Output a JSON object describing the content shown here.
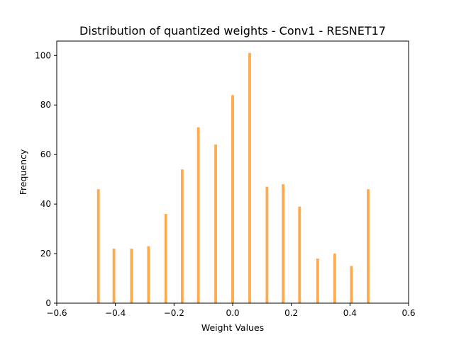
{
  "chart_data": {
    "type": "bar",
    "title": "Distribution of quantized weights - Conv1 - RESNET17",
    "xlabel": "Weight Values",
    "ylabel": "Frequency",
    "xlim": [
      -0.6,
      0.6
    ],
    "ylim": [
      0,
      105.8
    ],
    "xticks": [
      -0.6,
      -0.4,
      -0.2,
      0.0,
      0.2,
      0.4,
      0.6
    ],
    "xtick_labels": [
      "−0.6",
      "−0.4",
      "−0.2",
      "0.0",
      "0.2",
      "0.4",
      "0.6"
    ],
    "yticks": [
      0,
      20,
      40,
      60,
      80,
      100
    ],
    "ytick_labels": [
      "0",
      "20",
      "40",
      "60",
      "80",
      "100"
    ],
    "grid": false,
    "bar_color": "#ffaa4d",
    "bin_width": 0.0092,
    "x": [
      -0.458,
      -0.405,
      -0.345,
      -0.287,
      -0.228,
      -0.172,
      -0.117,
      -0.058,
      0.0,
      0.058,
      0.117,
      0.172,
      0.228,
      0.29,
      0.348,
      0.405,
      0.462
    ],
    "values": [
      46,
      22,
      22,
      23,
      36,
      54,
      71,
      64,
      84,
      101,
      47,
      48,
      39,
      18,
      20,
      15,
      46
    ]
  }
}
